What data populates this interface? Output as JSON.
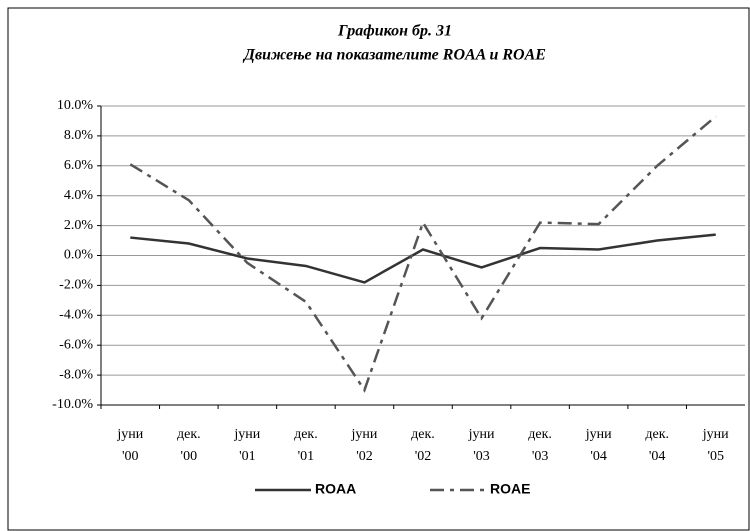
{
  "chart_data": {
    "type": "line",
    "title": "Графикон бр. 31",
    "subtitle": "Движење на показателите ROAA и ROAE",
    "categories": [
      "јуни '00",
      "дек. '00",
      "јуни '01",
      "дек. '01",
      "јуни '02",
      "дек. '02",
      "јуни '03",
      "дек. '03",
      "јуни '04",
      "дек. '04",
      "јуни '05"
    ],
    "series": [
      {
        "name": "ROAA",
        "color": "#333333",
        "dash": "solid",
        "values": [
          1.2,
          0.8,
          -0.2,
          -0.7,
          -1.8,
          0.4,
          -0.8,
          0.5,
          0.4,
          1.0,
          1.4
        ]
      },
      {
        "name": "ROAE",
        "color": "#555555",
        "dash": "dashdot",
        "values": [
          6.1,
          3.7,
          -0.5,
          -3.1,
          -9.0,
          2.2,
          -4.2,
          2.2,
          2.1,
          6.0,
          9.3
        ]
      }
    ],
    "ylim": [
      -10,
      10
    ],
    "yticks": [
      {
        "value": -10,
        "label": "-10.0%"
      },
      {
        "value": -8,
        "label": "-8.0%"
      },
      {
        "value": -6,
        "label": "-6.0%"
      },
      {
        "value": -4,
        "label": "-4.0%"
      },
      {
        "value": -2,
        "label": "-2.0%"
      },
      {
        "value": 0,
        "label": "0.0%"
      },
      {
        "value": 2,
        "label": "2.0%"
      },
      {
        "value": 4,
        "label": "4.0%"
      },
      {
        "value": 6,
        "label": "6.0%"
      },
      {
        "value": 8,
        "label": "8.0%"
      },
      {
        "value": 10,
        "label": "10.0%"
      }
    ],
    "grid": true,
    "legend": "bottom"
  }
}
